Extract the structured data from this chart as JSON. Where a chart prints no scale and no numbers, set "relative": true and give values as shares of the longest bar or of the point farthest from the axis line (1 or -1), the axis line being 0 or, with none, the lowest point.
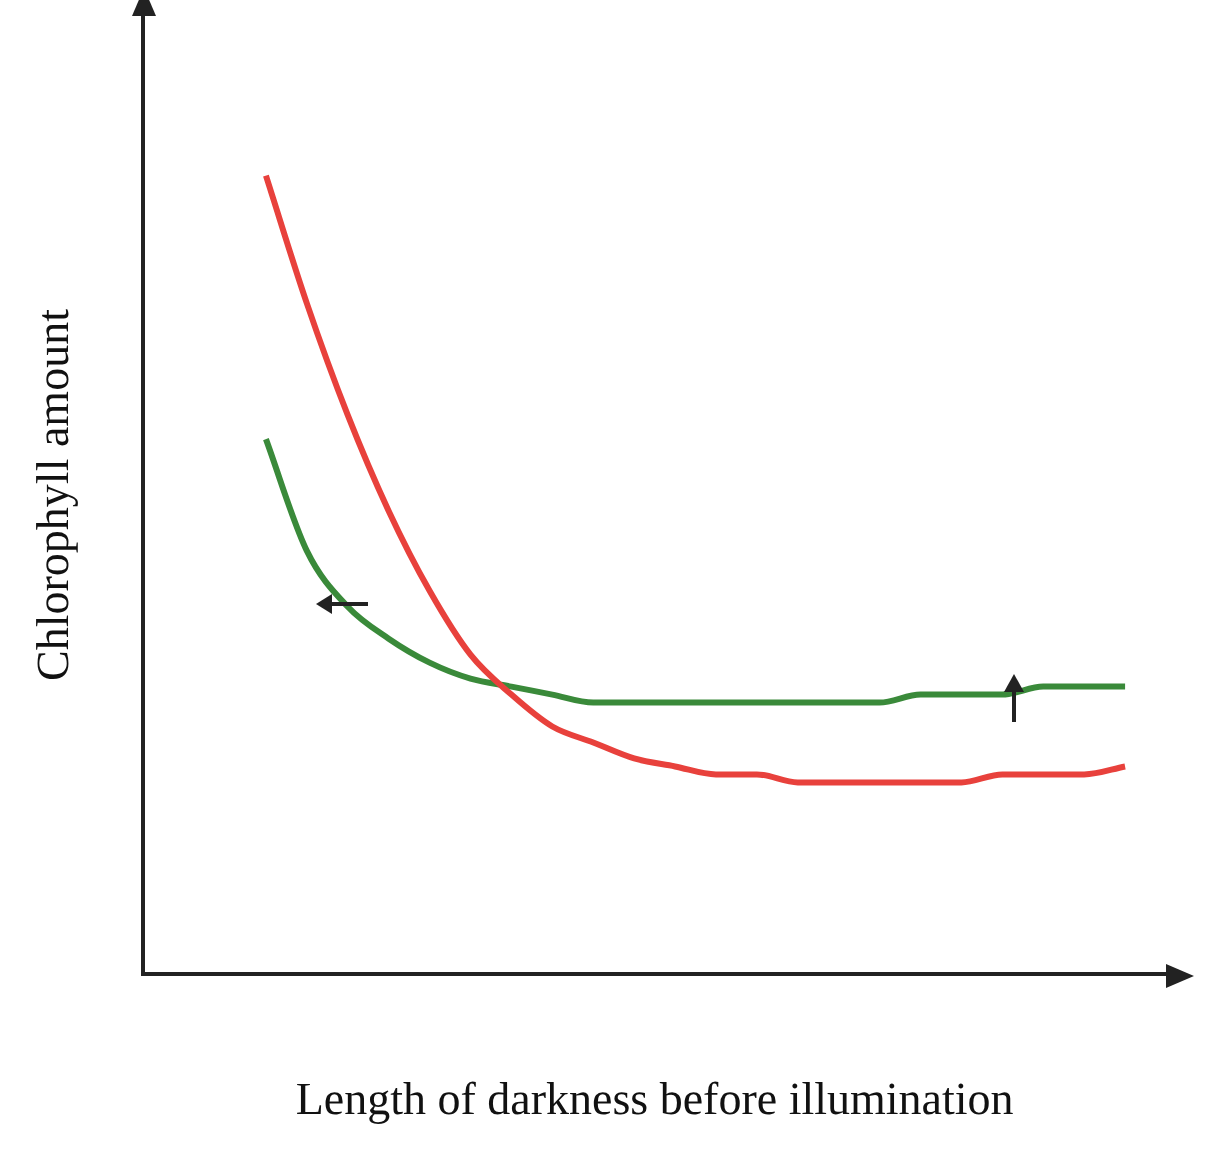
{
  "chart_data": {
    "type": "line",
    "relative": true,
    "xlabel": "Length of darkness before illumination",
    "ylabel": "Chlorophyll amount",
    "categories": [
      null,
      null,
      null,
      null,
      null,
      null,
      null,
      null,
      null,
      null,
      null,
      null,
      null,
      null,
      null,
      null,
      null,
      null,
      null,
      null,
      null,
      null,
      null,
      null,
      null,
      null
    ],
    "series": [
      {
        "color": "#e8413c",
        "values": [
          null,
          null,
          null,
          1,
          0.84,
          0.7,
          0.58,
          0.48,
          0.4,
          0.35,
          0.31,
          0.29,
          0.27,
          0.26,
          0.25,
          0.25,
          0.24,
          0.24,
          0.24,
          0.24,
          0.24,
          0.25,
          0.25,
          0.25,
          0.26,
          null
        ]
      },
      {
        "color": "#3a8a3a",
        "values": [
          null,
          null,
          null,
          0.67,
          0.53,
          0.46,
          0.42,
          0.39,
          0.37,
          0.36,
          0.35,
          0.34,
          0.34,
          0.34,
          0.34,
          0.34,
          0.34,
          0.34,
          0.34,
          0.35,
          0.35,
          0.35,
          0.36,
          0.36,
          0.36,
          null
        ]
      }
    ],
    "grid": false,
    "legend": false,
    "marker": "none",
    "line_style": "solid"
  }
}
